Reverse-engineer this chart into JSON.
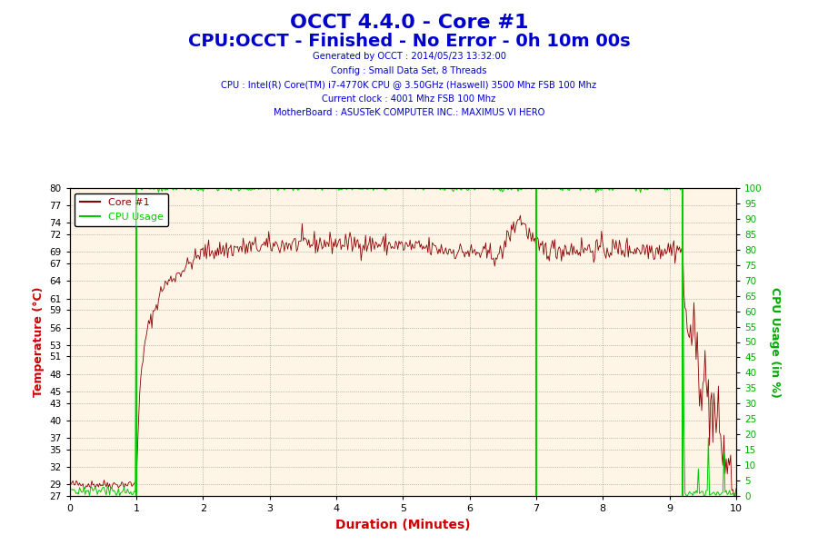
{
  "title1": "OCCT 4.4.0 - Core #1",
  "title2": "CPU:OCCT - Finished - No Error - 0h 10m 00s",
  "subtitle_lines": [
    "Generated by OCCT : 2014/05/23 13:32:00",
    "Config : Small Data Set, 8 Threads",
    "CPU : Intel(R) Core(TM) i7-4770K CPU @ 3.50GHz (Haswell) 3500 Mhz FSB 100 Mhz",
    "Current clock : 4001 Mhz FSB 100 Mhz",
    "MotherBoard : ASUSTeK COMPUTER INC.: MAXIMUS VI HERO"
  ],
  "title_color": "#0000cc",
  "subtitle_color": "#0000cc",
  "xlabel": "Duration (Minutes)",
  "ylabel_left": "Temperature (°C)",
  "ylabel_right": "CPU Usage (in %)",
  "xlabel_color": "#cc0000",
  "ylabel_left_color": "#cc0000",
  "ylabel_right_color": "#00aa00",
  "xlim": [
    0,
    10
  ],
  "ylim_left": [
    27,
    80
  ],
  "ylim_right": [
    0,
    100
  ],
  "yticks_left": [
    27,
    29,
    32,
    35,
    37,
    40,
    43,
    45,
    48,
    51,
    53,
    56,
    59,
    61,
    64,
    67,
    69,
    72,
    74,
    77,
    80
  ],
  "yticks_right": [
    0,
    5,
    10,
    15,
    20,
    25,
    30,
    35,
    40,
    45,
    50,
    55,
    60,
    65,
    70,
    75,
    80,
    85,
    90,
    95,
    100
  ],
  "xticks": [
    0,
    1,
    2,
    3,
    4,
    5,
    6,
    7,
    8,
    9,
    10
  ],
  "green_vlines": [
    1.0,
    7.0,
    9.2
  ],
  "plot_bg_color": "#fff5e6",
  "grid_color": "#888888",
  "temp_color": "#8b0000",
  "cpu_color": "#00cc00",
  "legend_core": "Core #1",
  "legend_cpu": "CPU Usage"
}
